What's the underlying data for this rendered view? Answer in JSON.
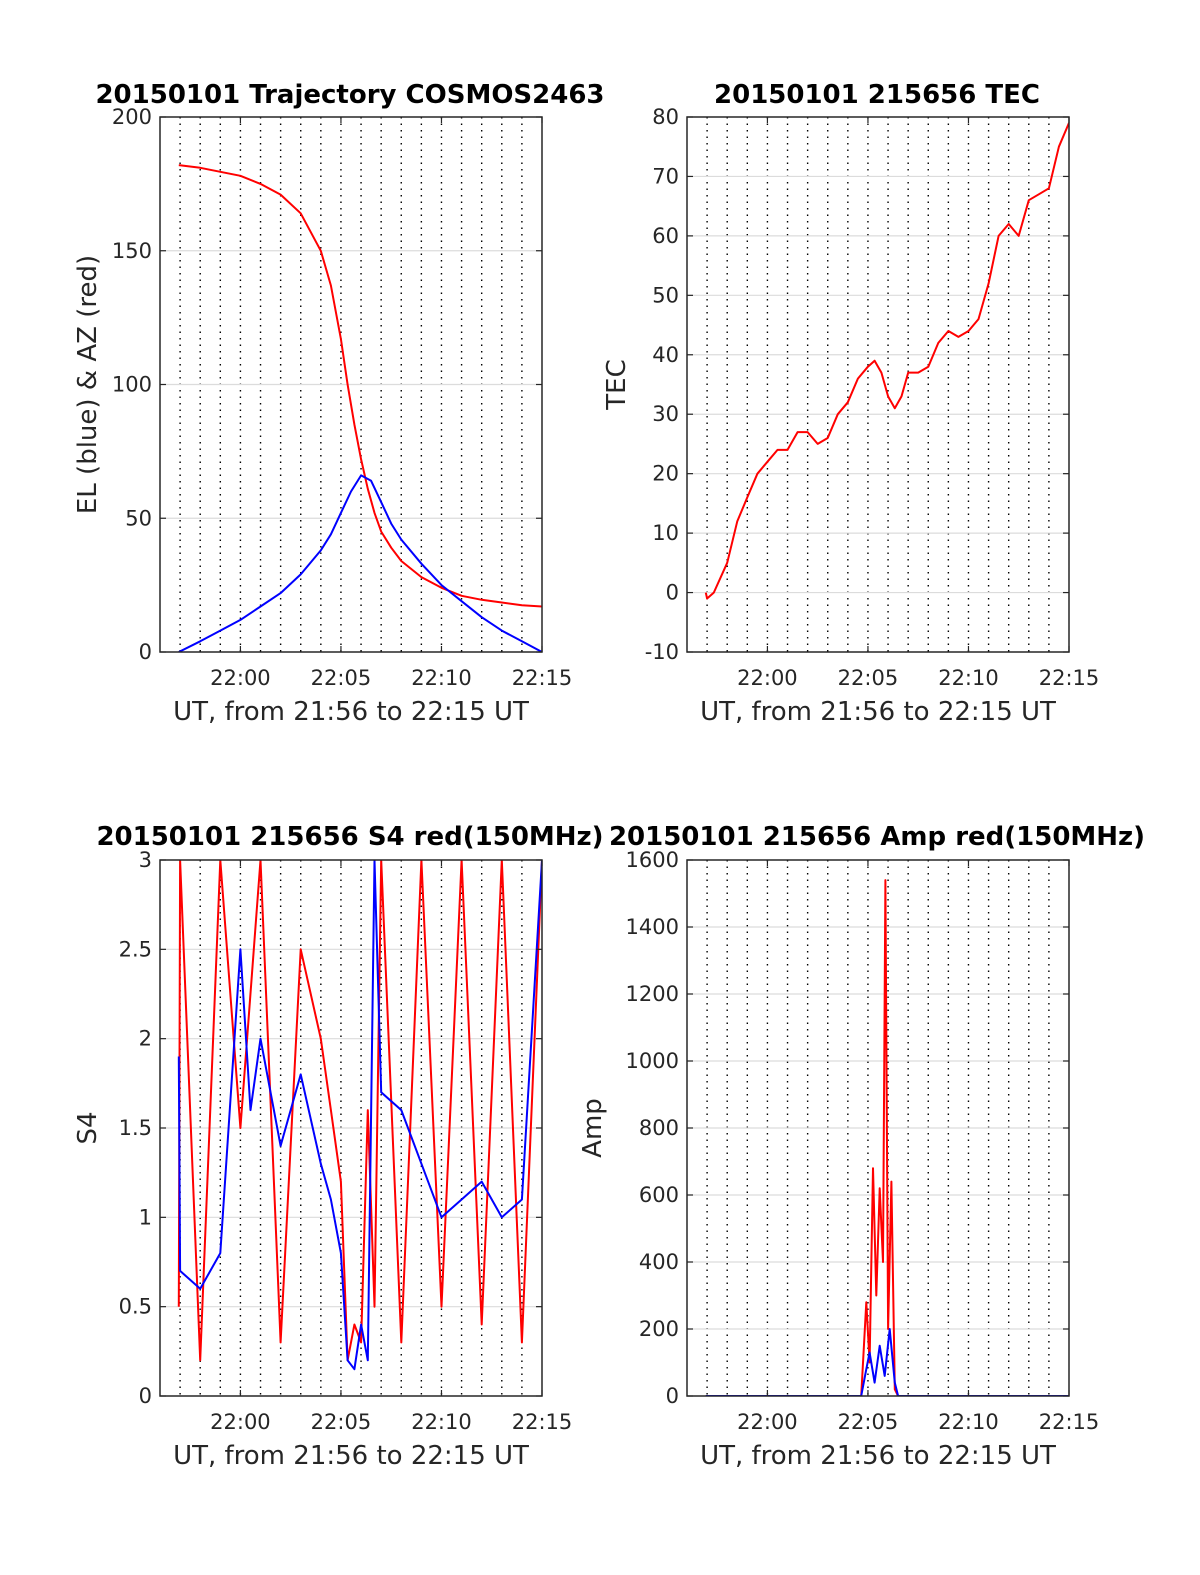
{
  "colors": {
    "red": "#ff0000",
    "blue": "#0000ff",
    "axis": "#262626",
    "grid": "#dcdcdc"
  },
  "chart_data": [
    {
      "id": "trajectory",
      "type": "line",
      "title": "20150101 Trajectory COSMOS2463",
      "xlabel": "UT, from 21:56 to 22:15 UT",
      "ylabel": "EL (blue) & AZ (red)",
      "xlim": [
        "21:56",
        "22:15"
      ],
      "ylim": [
        0,
        200
      ],
      "xticks": [
        "22:00",
        "22:05",
        "22:10",
        "22:15"
      ],
      "yticks": [
        "0",
        "50",
        "100",
        "150",
        "200"
      ],
      "grid": "vertical dotted every 1 minute; horizontal solid at y ticks",
      "series": [
        {
          "color": "red",
          "x": [
            "21:56:56",
            "21:58",
            "22:00",
            "22:01",
            "22:02",
            "22:03",
            "22:04",
            "22:04:30",
            "22:05",
            "22:05:20",
            "22:05:40",
            "22:06",
            "22:06:20",
            "22:06:40",
            "22:07",
            "22:07:30",
            "22:08",
            "22:09",
            "22:10",
            "22:11",
            "22:12",
            "22:13",
            "22:14",
            "22:15"
          ],
          "y": [
            182,
            181,
            178,
            175,
            171,
            164,
            150,
            137,
            117,
            100,
            85,
            72,
            61,
            52,
            45,
            39,
            34,
            28,
            24,
            21,
            19.5,
            18.5,
            17.5,
            17
          ]
        },
        {
          "color": "blue",
          "x": [
            "21:56:56",
            "21:58",
            "21:59",
            "22:00",
            "22:01",
            "22:02",
            "22:03",
            "22:04",
            "22:04:30",
            "22:05",
            "22:05:30",
            "22:06",
            "22:06:30",
            "22:07",
            "22:07:30",
            "22:08",
            "22:09",
            "22:10",
            "22:11",
            "22:12",
            "22:13",
            "22:14",
            "22:15"
          ],
          "y": [
            0,
            4,
            8,
            12,
            17,
            22,
            29,
            38,
            44,
            52,
            60,
            66,
            64,
            56,
            48,
            42,
            33,
            25,
            19,
            13,
            8,
            4,
            0
          ]
        }
      ]
    },
    {
      "id": "tec",
      "type": "line",
      "title": "20150101 215656 TEC",
      "xlabel": "UT, from 21:56 to 22:15 UT",
      "ylabel": "TEC",
      "xlim": [
        "21:56",
        "22:15"
      ],
      "ylim": [
        -10,
        80
      ],
      "xticks": [
        "22:00",
        "22:05",
        "22:10",
        "22:15"
      ],
      "yticks": [
        "-10",
        "0",
        "10",
        "20",
        "30",
        "40",
        "50",
        "60",
        "70",
        "80"
      ],
      "grid": "vertical dotted every 1 minute; horizontal solid at y ticks",
      "series": [
        {
          "color": "red",
          "x": [
            "21:56:56",
            "21:57",
            "21:57:20",
            "21:58",
            "21:58:30",
            "21:59",
            "21:59:30",
            "22:00",
            "22:00:30",
            "22:01",
            "22:01:30",
            "22:02",
            "22:02:30",
            "22:03",
            "22:03:30",
            "22:04",
            "22:04:30",
            "22:05",
            "22:05:20",
            "22:05:40",
            "22:06",
            "22:06:20",
            "22:06:40",
            "22:07",
            "22:07:30",
            "22:08",
            "22:08:30",
            "22:09",
            "22:09:30",
            "22:10",
            "22:10:30",
            "22:11",
            "22:11:30",
            "22:12",
            "22:12:30",
            "22:13",
            "22:13:30",
            "22:14",
            "22:14:30",
            "22:15"
          ],
          "y": [
            0,
            -1,
            0,
            5,
            12,
            16,
            20,
            22,
            24,
            24,
            27,
            27,
            25,
            26,
            30,
            32,
            36,
            38,
            39,
            37,
            33,
            31,
            33,
            37,
            37,
            38,
            42,
            44,
            43,
            44,
            46,
            52,
            60,
            62,
            60,
            66,
            67,
            68,
            75,
            79
          ]
        }
      ]
    },
    {
      "id": "s4",
      "type": "line",
      "title": "20150101 215656 S4 red(150MHz)",
      "xlabel": "UT, from 21:56 to 22:15 UT",
      "ylabel": "S4",
      "xlim": [
        "21:56",
        "22:15"
      ],
      "ylim": [
        0,
        3
      ],
      "xticks": [
        "22:00",
        "22:05",
        "22:10",
        "22:15"
      ],
      "yticks": [
        "0",
        "0.5",
        "1",
        "1.5",
        "2",
        "2.5",
        "3"
      ],
      "grid": "vertical dotted every 1 minute; horizontal solid at y ticks",
      "series": [
        {
          "color": "red",
          "x": [
            "21:56:56",
            "21:57",
            "21:58",
            "21:59",
            "22:00",
            "22:01",
            "22:02",
            "22:03",
            "22:04",
            "22:04:30",
            "22:05",
            "22:05:20",
            "22:05:40",
            "22:06",
            "22:06:20",
            "22:06:40",
            "22:07",
            "22:08",
            "22:09",
            "22:10",
            "22:11",
            "22:12",
            "22:13",
            "22:14",
            "22:15"
          ],
          "y": [
            0.5,
            3,
            0.2,
            3,
            1.5,
            3,
            0.3,
            2.5,
            2.0,
            1.6,
            1.2,
            0.2,
            0.4,
            0.3,
            1.6,
            0.5,
            3,
            0.3,
            3,
            0.5,
            3,
            0.4,
            3,
            0.3,
            3
          ]
        },
        {
          "color": "blue",
          "x": [
            "21:56:56",
            "21:57",
            "21:58",
            "21:59",
            "22:00",
            "22:00:30",
            "22:01",
            "22:02",
            "22:03",
            "22:04",
            "22:04:30",
            "22:05",
            "22:05:20",
            "22:05:40",
            "22:06",
            "22:06:20",
            "22:06:40",
            "22:07",
            "22:08",
            "22:09",
            "22:10",
            "22:11",
            "22:12",
            "22:13",
            "22:14",
            "22:15"
          ],
          "y": [
            1.9,
            0.7,
            0.6,
            0.8,
            2.5,
            1.6,
            2.0,
            1.4,
            1.8,
            1.3,
            1.1,
            0.8,
            0.2,
            0.15,
            0.4,
            0.2,
            3,
            1.7,
            1.6,
            1.3,
            1.0,
            1.1,
            1.2,
            1.0,
            1.1,
            3
          ]
        }
      ]
    },
    {
      "id": "amp",
      "type": "line",
      "title": "20150101 215656 Amp red(150MHz)",
      "xlabel": "UT, from 21:56 to 22:15 UT",
      "ylabel": "Amp",
      "xlim": [
        "21:56",
        "22:15"
      ],
      "ylim": [
        0,
        1600
      ],
      "xticks": [
        "22:00",
        "22:05",
        "22:10",
        "22:15"
      ],
      "yticks": [
        "0",
        "200",
        "400",
        "600",
        "800",
        "1000",
        "1200",
        "1400",
        "1600"
      ],
      "grid": "vertical dotted every 1 minute; horizontal solid at y ticks",
      "series": [
        {
          "color": "red",
          "x": [
            "21:56:56",
            "22:04:40",
            "22:04:55",
            "22:05:05",
            "22:05:15",
            "22:05:25",
            "22:05:35",
            "22:05:45",
            "22:05:52",
            "22:06:00",
            "22:06:10",
            "22:06:20",
            "22:06:30",
            "22:15"
          ],
          "y": [
            0,
            0,
            280,
            100,
            680,
            300,
            620,
            400,
            1540,
            200,
            640,
            20,
            0,
            0
          ]
        },
        {
          "color": "blue",
          "x": [
            "21:56:56",
            "22:04:40",
            "22:04:55",
            "22:05:05",
            "22:05:20",
            "22:05:35",
            "22:05:50",
            "22:06:05",
            "22:06:20",
            "22:06:30",
            "22:15"
          ],
          "y": [
            0,
            0,
            80,
            130,
            40,
            150,
            60,
            200,
            40,
            0,
            0
          ]
        }
      ]
    }
  ]
}
